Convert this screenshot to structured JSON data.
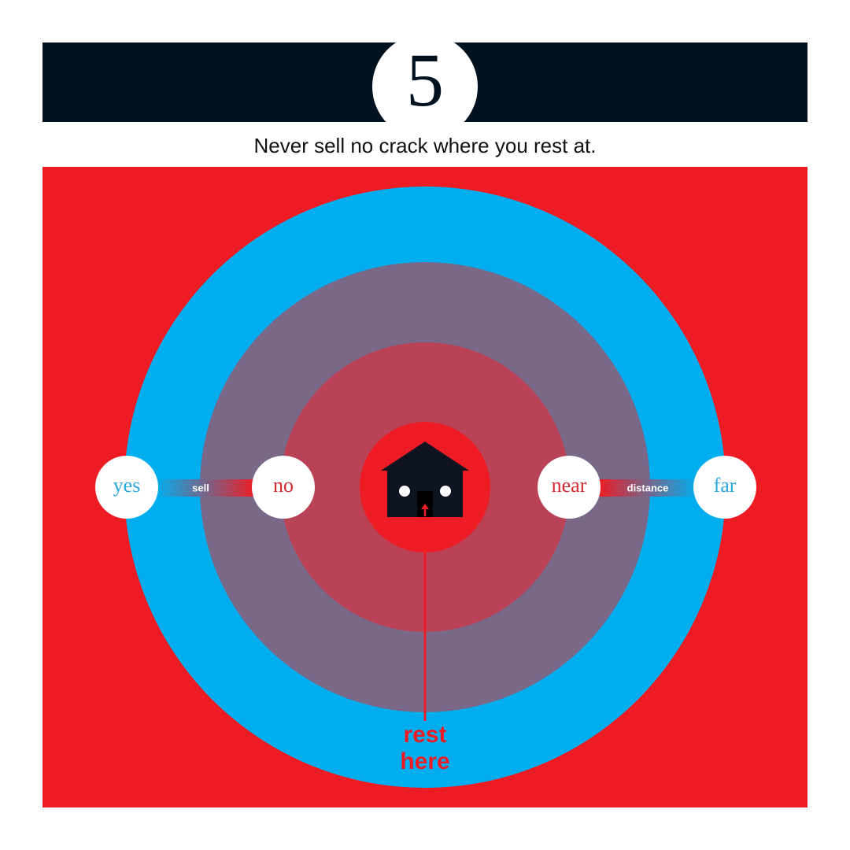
{
  "header": {
    "number": "5",
    "caption": "Never sell no crack where you rest at."
  },
  "scale_left": {
    "start": "yes",
    "label": "sell",
    "end": "no"
  },
  "scale_right": {
    "start": "near",
    "label": "distance",
    "end": "far"
  },
  "pointer": {
    "lines": [
      "rest",
      "here"
    ]
  }
}
